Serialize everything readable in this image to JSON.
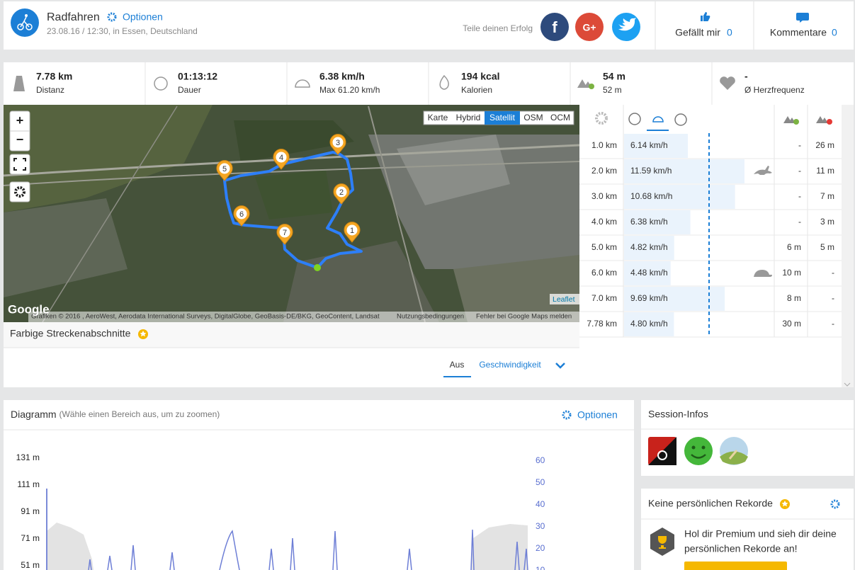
{
  "header": {
    "title": "Radfahren",
    "options": "Optionen",
    "date": "23.08.16 / 12:30, in Essen, Deutschland",
    "share": "Teile deinen Erfolg",
    "likes_label": "Gefällt mir",
    "likes": "0",
    "comments_label": "Kommentare",
    "comments": "0"
  },
  "stats": [
    {
      "value": "7.78 km",
      "label": "Distanz"
    },
    {
      "value": "01:13:12",
      "label": "Dauer"
    },
    {
      "value": "6.38 km/h",
      "label": "Max 61.20 km/h"
    },
    {
      "value": "194 kcal",
      "label": "Kalorien"
    },
    {
      "value": "54 m",
      "label": "52 m"
    },
    {
      "value": "-",
      "label": "Ø Herzfrequenz"
    }
  ],
  "map": {
    "zoom_in": "+",
    "zoom_out": "−",
    "layers": [
      "Karte",
      "Hybrid",
      "Satellit",
      "OSM",
      "OCM"
    ],
    "markers": [
      "1",
      "2",
      "3",
      "4",
      "5",
      "6",
      "7"
    ],
    "provider": "Google",
    "attribution": "Grafiken © 2016 , AeroWest, Aerodata International Surveys, DigitalGlobe, GeoBasis-DE/BKG, GeoContent, Landsat",
    "terms": "Nutzungsbedingungen",
    "report": "Fehler bei Google Maps melden",
    "leaflet": "Leaflet"
  },
  "segments": {
    "title": "Farbige Streckenabschnitte",
    "tabs": [
      "Aus",
      "Geschwindigkeit"
    ]
  },
  "splits": {
    "rows": [
      {
        "distance": "1.0 km",
        "speed": 6.14,
        "speed_label": "6.14 km/h",
        "ascent": "-",
        "descent": "26 m"
      },
      {
        "distance": "2.0 km",
        "speed": 11.59,
        "speed_label": "11.59 km/h",
        "ascent": "-",
        "descent": "11 m"
      },
      {
        "distance": "3.0 km",
        "speed": 10.68,
        "speed_label": "10.68 km/h",
        "ascent": "-",
        "descent": "7 m"
      },
      {
        "distance": "4.0 km",
        "speed": 6.38,
        "speed_label": "6.38 km/h",
        "ascent": "-",
        "descent": "3 m"
      },
      {
        "distance": "5.0 km",
        "speed": 4.82,
        "speed_label": "4.82 km/h",
        "ascent": "6 m",
        "descent": "5 m"
      },
      {
        "distance": "6.0 km",
        "speed": 4.48,
        "speed_label": "4.48 km/h",
        "ascent": "10 m",
        "descent": "-"
      },
      {
        "distance": "7.0 km",
        "speed": 9.69,
        "speed_label": "9.69 km/h",
        "ascent": "8 m",
        "descent": "-"
      },
      {
        "distance": "7.78 km",
        "speed": 4.8,
        "speed_label": "4.80 km/h",
        "ascent": "30 m",
        "descent": "-"
      }
    ]
  },
  "diagram": {
    "title": "Diagramm",
    "hint": "(Wähle einen Bereich aus, um zu zoomen)",
    "options": "Optionen",
    "left_ticks": [
      "131 m",
      "111 m",
      "91 m",
      "71 m",
      "51 m"
    ],
    "right_ticks": [
      "60",
      "50",
      "40",
      "30",
      "20",
      "10"
    ]
  },
  "session": {
    "title": "Session-Infos"
  },
  "records": {
    "title": "Keine persönlichen Rekorde",
    "text_1": "Hol dir Premium und sieh dir deine",
    "text_2": "persönlichen Rekorde an!"
  }
}
